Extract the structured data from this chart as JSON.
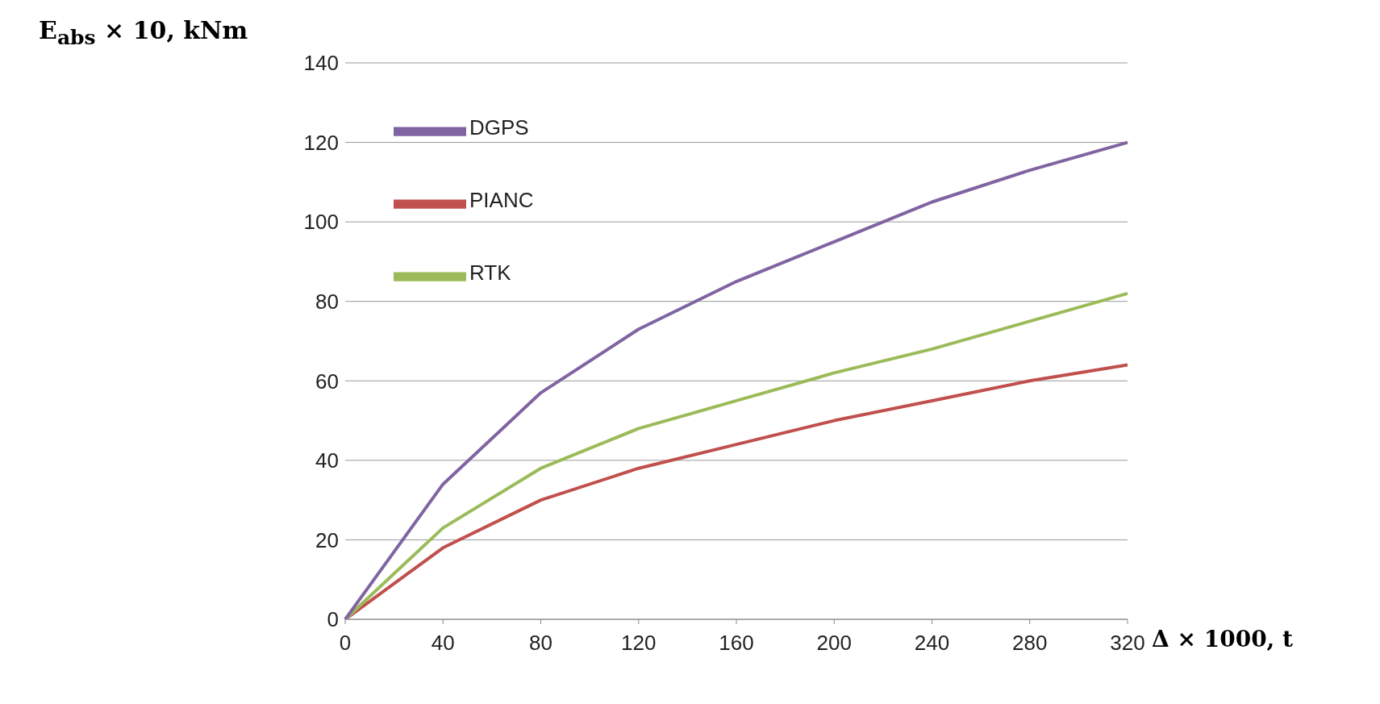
{
  "chart_data": {
    "type": "line",
    "xlabel": "Δ × 1000, t",
    "ylabel": "E$_{abs}$ × 10, kNm",
    "categories": [
      "0",
      "40",
      "80",
      "120",
      "160",
      "200",
      "240",
      "280",
      "320"
    ],
    "series": [
      {
        "name": "PIANC",
        "color": "#c0504d",
        "values": [
          0,
          18,
          30,
          38,
          44,
          50,
          55,
          60,
          64
        ]
      },
      {
        "name": "RTK",
        "color": "#9bbb59",
        "values": [
          0,
          23,
          38,
          48,
          55,
          62,
          68,
          75,
          82
        ]
      },
      {
        "name": "DGPS",
        "color": "#8064a2",
        "values": [
          0,
          34,
          57,
          73,
          85,
          95,
          105,
          113,
          120
        ]
      }
    ],
    "ylim": [
      0,
      140
    ],
    "yticks": [
      0,
      20,
      40,
      60,
      80,
      100,
      120,
      140
    ],
    "grid": "y",
    "legend": "top left",
    "marker": "none",
    "line_style": "solid"
  }
}
